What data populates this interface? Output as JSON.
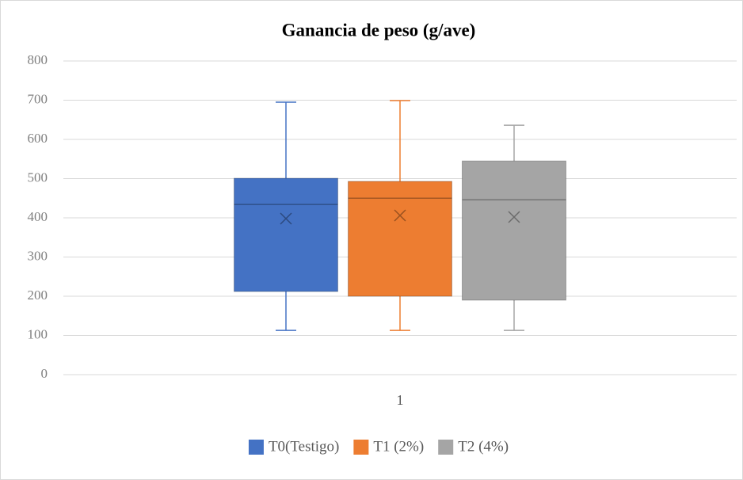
{
  "chart_data": {
    "type": "box",
    "title": "Ganancia de peso (g/ave)",
    "categories": [
      "1"
    ],
    "ylim": [
      0,
      800
    ],
    "yticks": [
      0,
      100,
      200,
      300,
      400,
      500,
      600,
      700,
      800
    ],
    "grid": true,
    "legend": "bottom",
    "series": [
      {
        "name": "T0(Testigo)",
        "color": "#4472c4",
        "min": [
          113
        ],
        "q1": [
          212
        ],
        "median": [
          434
        ],
        "q3": [
          501
        ],
        "max": [
          695
        ],
        "mean": [
          398
        ]
      },
      {
        "name": "T1 (2%)",
        "color": "#ed7d31",
        "min": [
          113
        ],
        "q1": [
          200
        ],
        "median": [
          450
        ],
        "q3": [
          493
        ],
        "max": [
          699
        ],
        "mean": [
          406
        ]
      },
      {
        "name": "T2 (4%)",
        "color": "#a5a5a5",
        "min": [
          113
        ],
        "q1": [
          190
        ],
        "median": [
          446
        ],
        "q3": [
          545
        ],
        "max": [
          636
        ],
        "mean": [
          402
        ]
      }
    ]
  }
}
